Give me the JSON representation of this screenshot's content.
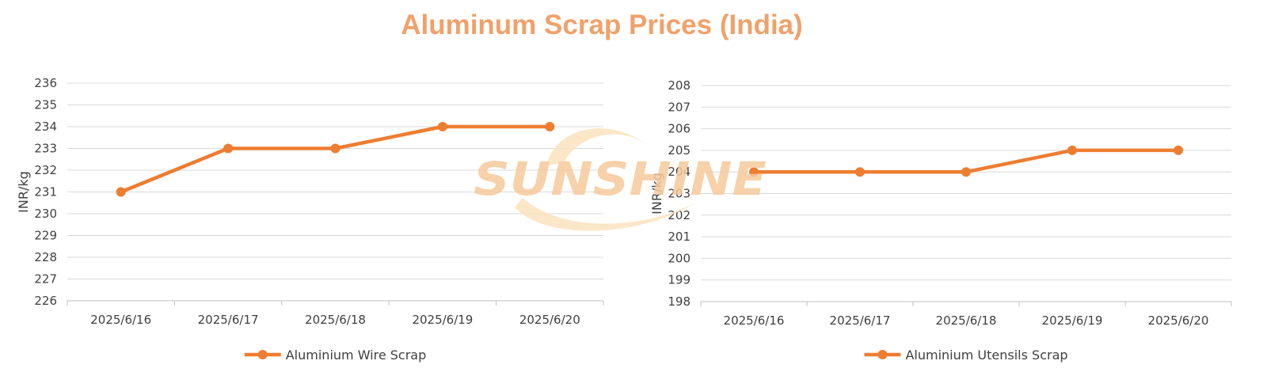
{
  "title": "Aluminum Scrap Prices (India)",
  "watermark": {
    "text": "SUNSHINE",
    "color": "#F5C99B",
    "swoosh_color": "#FBE3BF"
  },
  "colors": {
    "series": "#ED7D31",
    "title": "#F0A16A",
    "grid": "#D9D9D9",
    "text": "#404040"
  },
  "chart_data": [
    {
      "type": "line",
      "categories": [
        "2025/6/16",
        "2025/6/17",
        "2025/6/18",
        "2025/6/19",
        "2025/6/20"
      ],
      "series": [
        {
          "name": "Aluminium Wire Scrap",
          "values": [
            231,
            233,
            233,
            234,
            234
          ]
        }
      ],
      "ylabel": "INR/kg",
      "ylim": [
        226,
        236
      ],
      "ytick_step": 1,
      "grid": true,
      "legend": "bottom-center"
    },
    {
      "type": "line",
      "categories": [
        "2025/6/16",
        "2025/6/17",
        "2025/6/18",
        "2025/6/19",
        "2025/6/20"
      ],
      "series": [
        {
          "name": "Aluminium Utensils Scrap",
          "values": [
            204,
            204,
            204,
            205,
            205
          ]
        }
      ],
      "ylabel": "INR/kg",
      "ylim": [
        198,
        208
      ],
      "ytick_step": 1,
      "grid": true,
      "legend": "bottom-center"
    }
  ]
}
